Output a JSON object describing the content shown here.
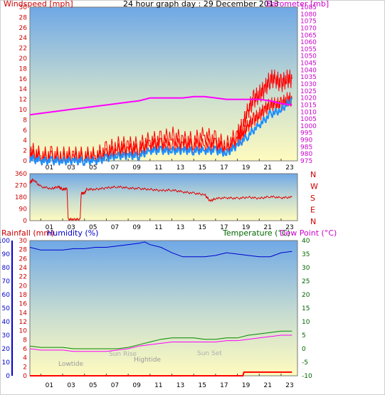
{
  "header": {
    "title": "24 hour graph day : 29 December 2013"
  },
  "colors": {
    "wind": "#ff0000",
    "gust": "#ff0000",
    "avg": "#1e90ff",
    "baro": "#ff00ff",
    "dir": "#e00000",
    "rain": "#ff0000",
    "humidity": "#0000cc",
    "temp": "#008800",
    "dew": "#ff00ff",
    "grad_top": "#7fb3e8",
    "grad_bottom": "#fffcc0"
  },
  "chart_data": [
    {
      "type": "line",
      "panel": "wind-baro",
      "ylabel_left": "Windspeed [mph]",
      "ylabel_right": "Barometer [mb]",
      "ylim": [
        0,
        30
      ],
      "y2lim": [
        975,
        1085
      ],
      "yticks": [
        "0",
        "2",
        "4",
        "6",
        "8",
        "10",
        "12",
        "14",
        "16",
        "18",
        "20",
        "22",
        "24",
        "26",
        "28",
        "30"
      ],
      "y2ticks": [
        "975",
        "980",
        "985",
        "990",
        "995",
        "1000",
        "1005",
        "1010",
        "1015",
        "1020",
        "1025",
        "1030",
        "1035",
        "1040",
        "1045",
        "1050",
        "1055",
        "1060",
        "1065",
        "1070",
        "1075",
        "1080",
        "1085"
      ],
      "xticks": [
        "01",
        "03",
        "05",
        "07",
        "09",
        "11",
        "13",
        "15",
        "17",
        "19",
        "21",
        "23"
      ],
      "xlim": [
        0,
        24.5
      ],
      "series": [
        {
          "key": "gust",
          "x": [
            0,
            1,
            2,
            3,
            4,
            5,
            6,
            7,
            8,
            9,
            10,
            11,
            12,
            13,
            14,
            15,
            16,
            17,
            18,
            19,
            19.5,
            20,
            20.5,
            21,
            21.5,
            22,
            22.5,
            23,
            23.5,
            24
          ],
          "values": [
            2,
            1,
            1,
            1,
            1,
            1,
            1,
            2,
            3,
            3,
            3,
            4,
            4,
            5,
            4,
            4,
            5,
            4,
            3,
            5,
            7,
            10,
            12,
            13,
            14,
            16,
            16,
            15,
            16,
            16
          ]
        },
        {
          "key": "wind",
          "x": [
            0,
            1,
            2,
            3,
            4,
            5,
            6,
            7,
            8,
            9,
            10,
            11,
            12,
            13,
            14,
            15,
            16,
            17,
            18,
            19,
            19.5,
            20,
            20.5,
            21,
            21.5,
            22,
            22.5,
            23,
            23.5,
            24
          ],
          "values": [
            1,
            0.5,
            0.5,
            0.5,
            0.5,
            0.5,
            0.5,
            1,
            2,
            2,
            2,
            3,
            3,
            3,
            3,
            3,
            3,
            3,
            2,
            4,
            5,
            7,
            8,
            9,
            10,
            11,
            11,
            11,
            12,
            12
          ]
        },
        {
          "key": "avg",
          "x": [
            0,
            1,
            2,
            3,
            4,
            5,
            6,
            7,
            8,
            9,
            10,
            11,
            12,
            13,
            14,
            15,
            16,
            17,
            18,
            19,
            20,
            21,
            22,
            23,
            24
          ],
          "values": [
            0.5,
            0,
            0,
            0,
            0,
            0,
            0,
            0.5,
            1,
            1,
            1,
            2,
            2,
            2,
            2,
            2,
            2,
            2,
            1.5,
            3,
            5,
            7,
            9,
            10,
            12
          ]
        },
        {
          "key": "baro",
          "axis": "right",
          "x": [
            0,
            1,
            2,
            3,
            4,
            5,
            6,
            7,
            8,
            9,
            10,
            11,
            12,
            13,
            14,
            15,
            16,
            17,
            18,
            19,
            20,
            21,
            22,
            23,
            24
          ],
          "values": [
            1008,
            1009,
            1010,
            1011,
            1012,
            1013,
            1014,
            1015,
            1016,
            1017,
            1018,
            1020,
            1020,
            1020,
            1020,
            1021,
            1021,
            1020,
            1019,
            1019,
            1019,
            1019,
            1018,
            1016,
            1015
          ]
        }
      ]
    },
    {
      "type": "line",
      "panel": "direction",
      "ylim": [
        0,
        360
      ],
      "yticks": [
        "0",
        "90",
        "180",
        "270",
        "360"
      ],
      "compass": [
        "N",
        "W",
        "S",
        "E",
        "N"
      ],
      "xticks": [
        "01",
        "03",
        "05",
        "07",
        "09",
        "11",
        "13",
        "15",
        "17",
        "19",
        "21",
        "23"
      ],
      "xlim": [
        0,
        24.5
      ],
      "series": [
        {
          "key": "dir",
          "x": [
            0,
            0.3,
            1,
            2,
            2.6,
            3,
            3.4,
            3.5,
            4,
            4.6,
            4.7,
            5,
            5.2,
            6,
            7,
            8,
            9,
            10,
            11,
            12,
            13,
            14,
            15,
            16,
            16.5,
            17,
            18,
            19,
            20,
            21,
            22,
            23,
            24
          ],
          "values": [
            290,
            315,
            260,
            245,
            260,
            240,
            245,
            10,
            10,
            10,
            210,
            210,
            240,
            240,
            250,
            260,
            250,
            245,
            240,
            230,
            235,
            220,
            210,
            200,
            150,
            170,
            175,
            170,
            180,
            170,
            185,
            175,
            180
          ]
        }
      ]
    },
    {
      "type": "line",
      "panel": "rain-hum-temp",
      "ylabel_rain": "Rainfall (mm)",
      "ylabel_hum": "Humidity (%)",
      "ylabel_temp": "Temperature (°C)",
      "ylabel_dew": "Dew Point (°C)",
      "rain_ticks": [
        "0",
        "2",
        "4",
        "6",
        "8",
        "10",
        "12",
        "14",
        "16",
        "18",
        "20",
        "22",
        "24",
        "26",
        "28",
        "30"
      ],
      "hum_ticks": [
        "0",
        "10",
        "20",
        "30",
        "40",
        "50",
        "60",
        "70",
        "80",
        "90",
        "100"
      ],
      "temp_ticks": [
        "-10",
        "-5",
        "0",
        "5",
        "10",
        "15",
        "20",
        "25",
        "30",
        "35",
        "40"
      ],
      "xticks": [
        "01",
        "03",
        "05",
        "07",
        "09",
        "11",
        "13",
        "15",
        "17",
        "19",
        "21",
        "23"
      ],
      "xlim": [
        0,
        24.5
      ],
      "annotations": {
        "lowtide": "Lowtide",
        "sunrise": "Sun Rise",
        "hightide": "Hightide",
        "sunset": "Sun Set"
      },
      "series": [
        {
          "key": "humidity",
          "x": [
            0,
            1,
            2,
            3,
            4,
            5,
            6,
            7,
            8,
            9,
            10,
            10.5,
            11,
            12,
            13,
            14,
            15,
            16,
            17,
            18,
            19,
            20,
            21,
            22,
            23,
            24
          ],
          "values": [
            95,
            93,
            93,
            93,
            94,
            94,
            95,
            95,
            96,
            97,
            98,
            99,
            97,
            95,
            91,
            88,
            88,
            88,
            89,
            91,
            90,
            89,
            88,
            88,
            91,
            92
          ]
        },
        {
          "key": "temp",
          "x": [
            0,
            1,
            2,
            3,
            4,
            5,
            6,
            7,
            8,
            9,
            10,
            11,
            12,
            13,
            14,
            15,
            16,
            17,
            18,
            19,
            20,
            21,
            22,
            23,
            24
          ],
          "values": [
            1,
            0.5,
            0.5,
            0.5,
            0,
            0,
            0,
            0,
            0,
            0.5,
            1.5,
            2.5,
            3.5,
            4,
            4,
            4,
            3.5,
            3.5,
            4,
            4,
            5,
            5.5,
            6,
            6.5,
            6.5
          ]
        },
        {
          "key": "dew",
          "x": [
            0,
            1,
            2,
            3,
            4,
            5,
            6,
            7,
            8,
            9,
            10,
            11,
            12,
            13,
            14,
            15,
            16,
            17,
            18,
            19,
            20,
            21,
            22,
            23,
            24
          ],
          "values": [
            0,
            -0.5,
            -0.5,
            -0.5,
            -1,
            -1,
            -1,
            -1,
            -0.5,
            0,
            1,
            1.5,
            2,
            2.5,
            2.5,
            2.5,
            2.5,
            2.5,
            3,
            3,
            3.5,
            4,
            4.5,
            5,
            5
          ]
        },
        {
          "key": "rain",
          "x": [
            0,
            19.5,
            19.6,
            24
          ],
          "values": [
            0,
            0,
            0.8,
            0.8
          ]
        }
      ]
    }
  ]
}
